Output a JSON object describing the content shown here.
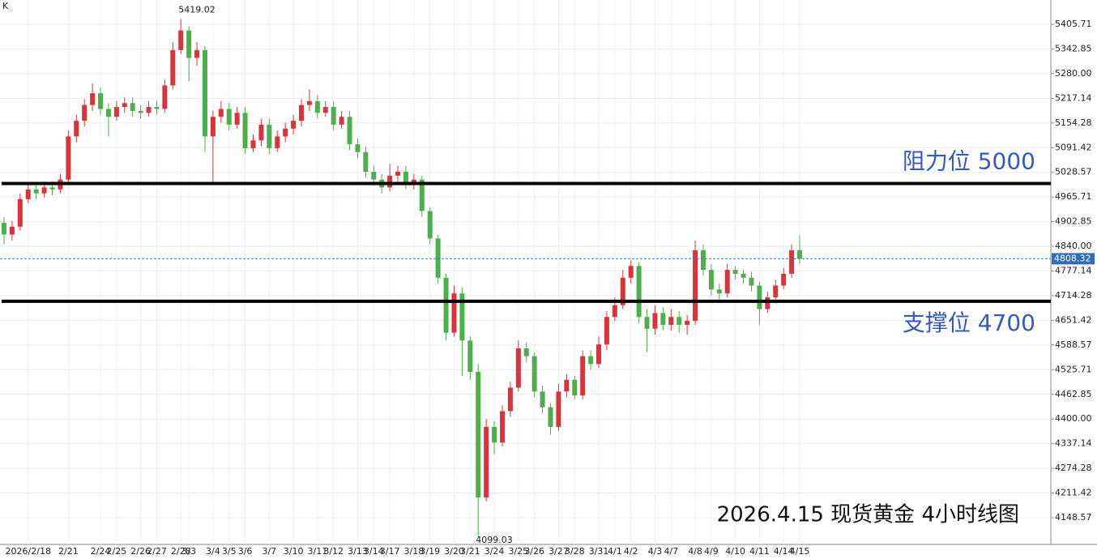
{
  "chart_data": {
    "type": "candlestick",
    "corner_label": "K",
    "title": "2026.4.15 现货黄金 4小时线图",
    "up_color": "#d9343b",
    "down_color": "#4cb04a",
    "grid": true,
    "ylim": [
      4080.45,
      5467.64
    ],
    "yticks": [
      {
        "value": 5405.71,
        "label": "5405.71"
      },
      {
        "value": 5342.85,
        "label": "5342.85"
      },
      {
        "value": 5280,
        "label": "5280.00"
      },
      {
        "value": 5217.14,
        "label": "5217.14"
      },
      {
        "value": 5154.28,
        "label": "5154.28"
      },
      {
        "value": 5091.42,
        "label": "5091.42"
      },
      {
        "value": 5028.57,
        "label": "5028.57"
      },
      {
        "value": 4965.71,
        "label": "4965.71"
      },
      {
        "value": 4902.85,
        "label": "4902.85"
      },
      {
        "value": 4840,
        "label": "4840.00"
      },
      {
        "value": 4777.14,
        "label": "4777.14"
      },
      {
        "value": 4714.28,
        "label": "4714.28"
      },
      {
        "value": 4651.42,
        "label": "4651.42"
      },
      {
        "value": 4588.57,
        "label": "4588.57"
      },
      {
        "value": 4525.71,
        "label": "4525.71"
      },
      {
        "value": 4462.85,
        "label": "4462.85"
      },
      {
        "value": 4400,
        "label": "4400.00"
      },
      {
        "value": 4337.14,
        "label": "4337.14"
      },
      {
        "value": 4274.28,
        "label": "4274.28"
      },
      {
        "value": 4211.42,
        "label": "4211.42"
      },
      {
        "value": 4148.57,
        "label": "4148.57"
      }
    ],
    "levels": [
      {
        "name": "阻力位 5000",
        "value": 5000
      },
      {
        "name": "支撑位 4700",
        "value": 4700
      }
    ],
    "categories": [
      null,
      null,
      null,
      "2026/2/18",
      null,
      null,
      null,
      null,
      "2/21",
      null,
      null,
      null,
      "2/24",
      null,
      "2/25",
      null,
      null,
      "2/26",
      null,
      "2/27",
      null,
      null,
      "2/28",
      "3/3",
      null,
      null,
      "3/4",
      null,
      "3/5",
      null,
      "3/6",
      null,
      null,
      "3/7",
      null,
      null,
      "3/10",
      null,
      null,
      "3/11",
      null,
      "3/12",
      null,
      null,
      "3/13",
      null,
      "3/14",
      null,
      "3/17",
      null,
      null,
      "3/18",
      null,
      "3/19",
      null,
      null,
      "3/20",
      null,
      "3/21",
      null,
      null,
      "3/24",
      null,
      null,
      "3/25",
      null,
      "3/26",
      null,
      null,
      "3/27",
      null,
      "3/28",
      null,
      null,
      "3/31",
      null,
      "4/1",
      null,
      "4/2",
      null,
      null,
      "4/3",
      null,
      "4/7",
      null,
      null,
      "4/8",
      null,
      "4/9",
      null,
      null,
      "4/10",
      null,
      null,
      "4/11",
      null,
      null,
      "4/14",
      null,
      "4/15"
    ],
    "open": [
      4900,
      4870,
      4890,
      4960,
      4985,
      4975,
      4990,
      4985,
      5010,
      5120,
      5160,
      5200,
      5230,
      5190,
      5170,
      5195,
      5205,
      5185,
      5180,
      5195,
      5190,
      5250,
      5340,
      5390,
      5320,
      5340,
      5120,
      5170,
      5190,
      5150,
      5180,
      5090,
      5110,
      5150,
      5090,
      5120,
      5140,
      5160,
      5200,
      5210,
      5180,
      5195,
      5150,
      5170,
      5100,
      5080,
      5030,
      5010,
      4990,
      5020,
      5030,
      5000,
      5010,
      4930,
      4860,
      4760,
      4620,
      4720,
      4600,
      4520,
      4200,
      4380,
      4340,
      4420,
      4480,
      4580,
      4560,
      4470,
      4430,
      4380,
      4470,
      4500,
      4460,
      4560,
      4540,
      4590,
      4660,
      4690,
      4760,
      4790,
      4660,
      4630,
      4670,
      4640,
      4660,
      4640,
      4650,
      4830,
      4780,
      4730,
      4720,
      4780,
      4770,
      4760,
      4740,
      4680,
      4710,
      4740,
      4770,
      4830
    ],
    "high": [
      4915,
      4905,
      4975,
      5000,
      5000,
      5005,
      5005,
      5025,
      5135,
      5175,
      5215,
      5255,
      5245,
      5205,
      5210,
      5220,
      5220,
      5200,
      5210,
      5210,
      5265,
      5360,
      5419.02,
      5400,
      5360,
      5350,
      5185,
      5210,
      5205,
      5195,
      5195,
      5125,
      5165,
      5165,
      5135,
      5155,
      5175,
      5215,
      5240,
      5225,
      5210,
      5210,
      5185,
      5185,
      5115,
      5095,
      5045,
      5025,
      5050,
      5045,
      5045,
      5025,
      5020,
      4940,
      4870,
      4770,
      4740,
      4735,
      4610,
      4540,
      4400,
      4395,
      4435,
      4495,
      4600,
      4595,
      4570,
      4485,
      4440,
      4490,
      4515,
      4510,
      4575,
      4575,
      4610,
      4675,
      4710,
      4780,
      4805,
      4800,
      4680,
      4690,
      4685,
      4680,
      4675,
      4665,
      4855,
      4845,
      4795,
      4745,
      4795,
      4790,
      4780,
      4775,
      4750,
      4725,
      4755,
      4785,
      4845,
      4868
    ],
    "low": [
      4845,
      4855,
      4880,
      4950,
      4960,
      4965,
      4970,
      4975,
      5000,
      5105,
      5145,
      5185,
      5175,
      5120,
      5160,
      5180,
      5170,
      5165,
      5170,
      5175,
      5180,
      5240,
      5330,
      5260,
      5300,
      5080,
      5000,
      5155,
      5135,
      5140,
      5075,
      5080,
      5095,
      5075,
      5080,
      5105,
      5125,
      5145,
      5185,
      5165,
      5170,
      5135,
      5140,
      5085,
      5065,
      5015,
      4995,
      4975,
      4980,
      5005,
      4985,
      4985,
      4915,
      4845,
      4745,
      4600,
      4610,
      4510,
      4500,
      4099.03,
      4190,
      4310,
      4330,
      4405,
      4470,
      4545,
      4455,
      4415,
      4360,
      4370,
      4455,
      4450,
      4450,
      4525,
      4530,
      4575,
      4650,
      4680,
      4745,
      4645,
      4570,
      4615,
      4625,
      4625,
      4620,
      4615,
      4640,
      4765,
      4715,
      4705,
      4710,
      4755,
      4745,
      4725,
      4640,
      4670,
      4700,
      4730,
      4760,
      4795
    ],
    "close": [
      4870,
      4890,
      4960,
      4985,
      4975,
      4990,
      4985,
      5010,
      5120,
      5160,
      5200,
      5230,
      5190,
      5170,
      5195,
      5205,
      5185,
      5180,
      5195,
      5190,
      5250,
      5340,
      5390,
      5320,
      5340,
      5120,
      5170,
      5190,
      5150,
      5180,
      5090,
      5110,
      5150,
      5090,
      5120,
      5140,
      5160,
      5200,
      5210,
      5180,
      5195,
      5150,
      5170,
      5100,
      5080,
      5030,
      5010,
      4990,
      5020,
      5030,
      5000,
      5010,
      4930,
      4860,
      4760,
      4620,
      4720,
      4600,
      4520,
      4200,
      4380,
      4340,
      4420,
      4480,
      4580,
      4560,
      4470,
      4430,
      4380,
      4470,
      4500,
      4460,
      4560,
      4540,
      4590,
      4660,
      4690,
      4760,
      4790,
      4660,
      4630,
      4670,
      4640,
      4660,
      4640,
      4650,
      4830,
      4780,
      4730,
      4720,
      4780,
      4770,
      4760,
      4740,
      4680,
      4710,
      4740,
      4770,
      4830,
      4808.32
    ]
  }
}
